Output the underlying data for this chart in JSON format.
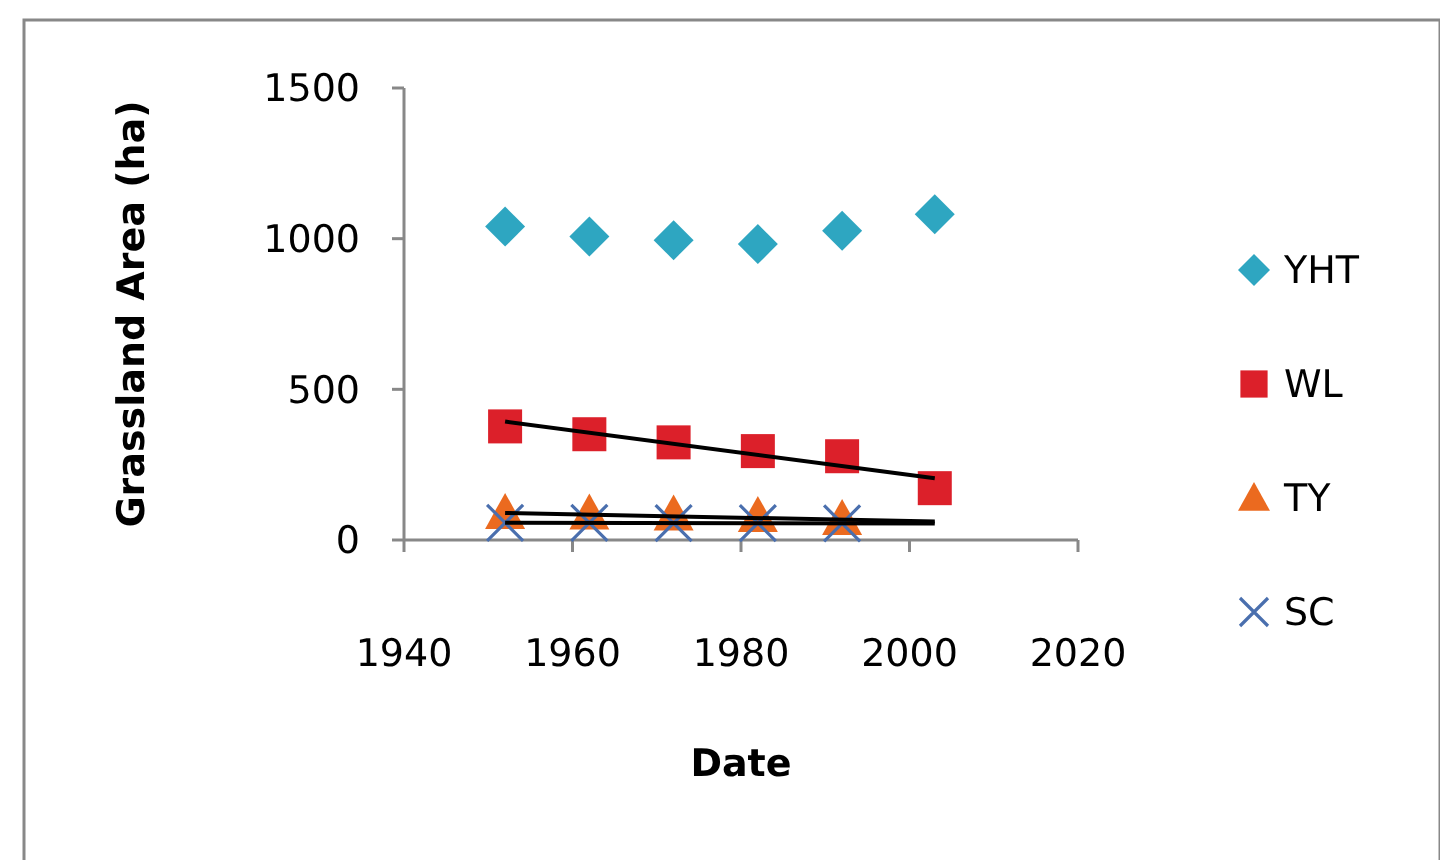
{
  "chart_data": {
    "type": "scatter",
    "xlabel": "Date",
    "ylabel": "Grassland Area (ha)",
    "xlim": [
      1940,
      2020
    ],
    "xticks": [
      1940,
      1960,
      1980,
      2000,
      2020
    ],
    "ylim": [
      0,
      1500
    ],
    "yticks": [
      0,
      500,
      1000,
      1500
    ],
    "grid": false,
    "legend": "right",
    "series": [
      {
        "name": "YHT",
        "color": "#2ea6c1",
        "marker": "diamond",
        "x": [
          1952,
          1962,
          1972,
          1982,
          1992,
          2003
        ],
        "values": [
          1040,
          1007,
          995,
          982,
          1026,
          1081
        ]
      },
      {
        "name": "WL",
        "color": "#dc202a",
        "marker": "square",
        "x": [
          1952,
          1962,
          1972,
          1982,
          1992,
          2003
        ],
        "values": [
          377,
          351,
          324,
          295,
          278,
          172
        ]
      },
      {
        "name": "TY",
        "color": "#eb6a1f",
        "marker": "triangle",
        "x": [
          1952,
          1962,
          1972,
          1982,
          1992
        ],
        "values": [
          90,
          88,
          85,
          80,
          70
        ]
      },
      {
        "name": "SC",
        "color": "#4a6fae",
        "marker": "cross",
        "x": [
          1952,
          1962,
          1972,
          1982,
          1992
        ],
        "values": [
          57,
          57,
          56,
          56,
          55
        ]
      },
      {
        "type": "line",
        "color": "#000000",
        "marker": "none",
        "x": [
          1952,
          2003
        ],
        "values": [
          393,
          205
        ]
      },
      {
        "type": "line",
        "color": "#000000",
        "marker": "none",
        "x": [
          1952,
          2003
        ],
        "values": [
          90,
          61
        ]
      },
      {
        "type": "line",
        "color": "#000000",
        "marker": "none",
        "x": [
          1952,
          2003
        ],
        "values": [
          57,
          55
        ]
      }
    ]
  }
}
